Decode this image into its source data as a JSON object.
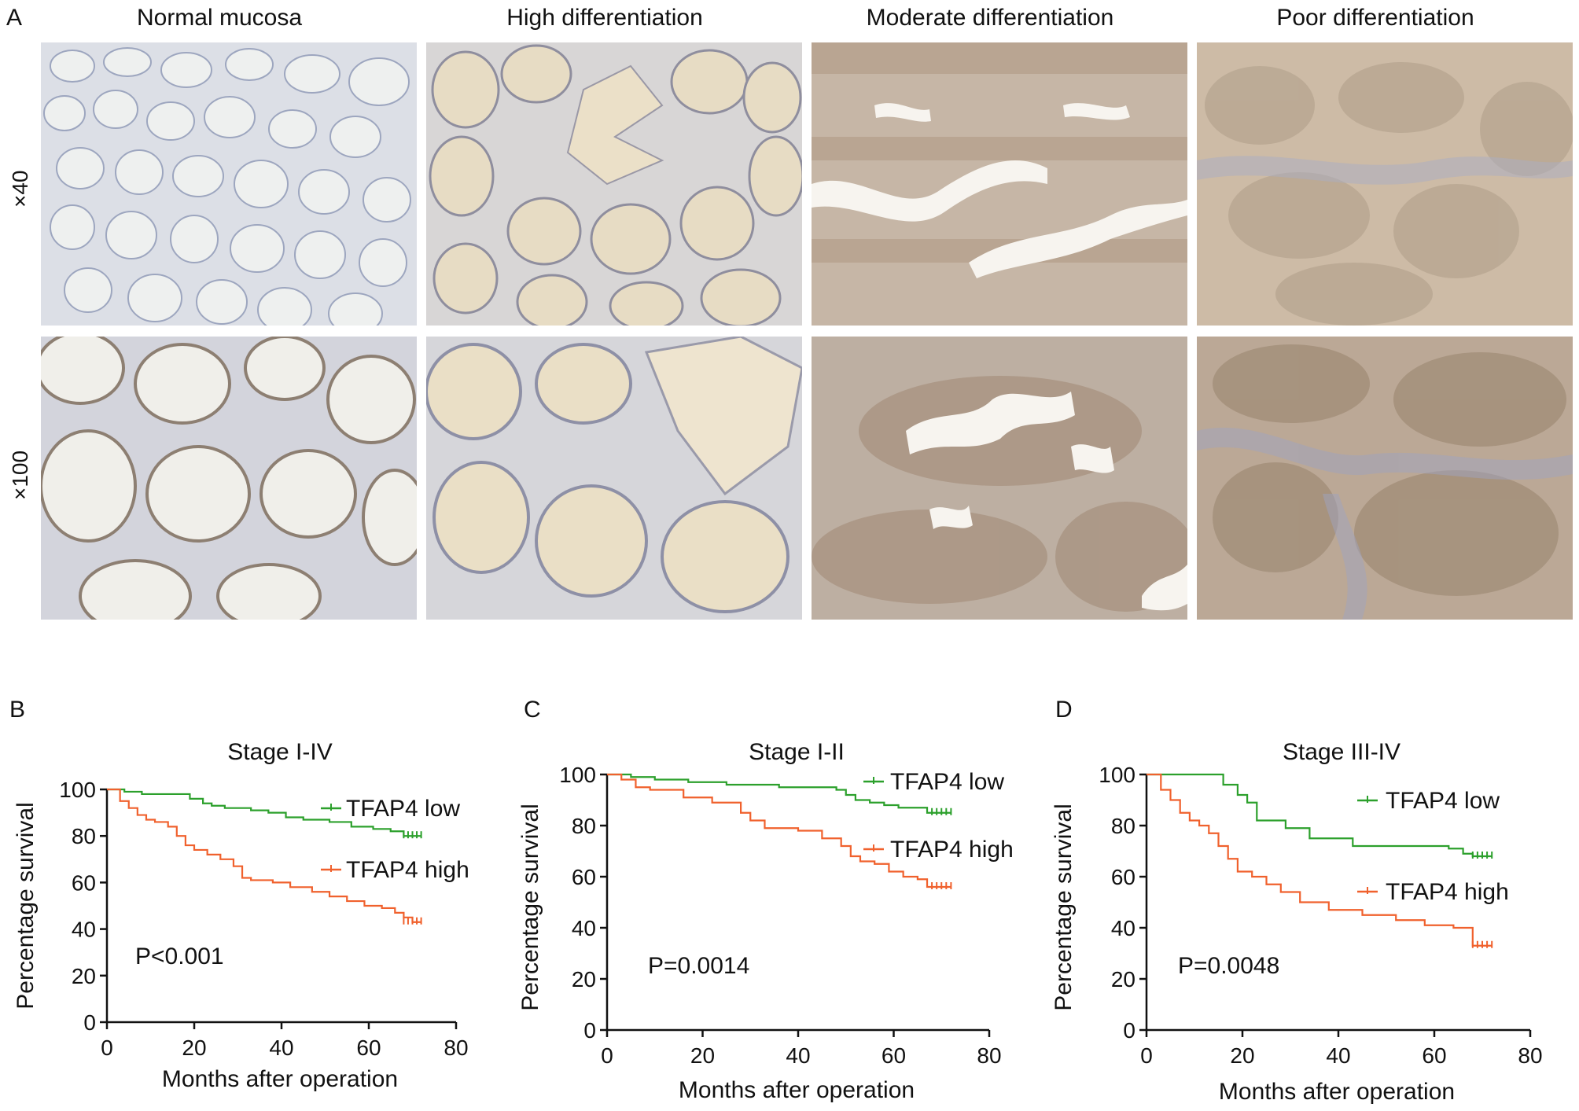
{
  "panel_a": {
    "letter": "A",
    "columns": [
      "Normal mucosa",
      "High differentiation",
      "Moderate differentiation",
      "Poor differentiation"
    ],
    "rows": [
      "×40",
      "×100"
    ]
  },
  "colors": {
    "low": "#2ca02c",
    "high": "#f0612d",
    "axis": "#111111"
  },
  "chart_data": [
    {
      "panel": "B",
      "type": "line",
      "title": "Stage I-IV",
      "xlabel": "Months after operation",
      "ylabel": "Percentage survival",
      "xlim": [
        0,
        80
      ],
      "ylim": [
        0,
        100
      ],
      "xticks": [
        0,
        20,
        40,
        60,
        80
      ],
      "yticks": [
        0,
        20,
        40,
        60,
        80,
        100
      ],
      "pvalue": "P<0.001",
      "series": [
        {
          "name": "TFAP4 low",
          "color": "#2ca02c",
          "x": [
            0,
            4,
            8,
            15,
            19,
            22,
            24,
            27,
            33,
            37,
            41,
            45,
            51,
            56,
            61,
            65,
            68,
            72
          ],
          "y": [
            100,
            99,
            98,
            98,
            96,
            94,
            93,
            92,
            91,
            90,
            88,
            87,
            86,
            84,
            83,
            82,
            80,
            80
          ]
        },
        {
          "name": "TFAP4 high",
          "color": "#f0612d",
          "x": [
            0,
            3,
            5,
            7,
            9,
            11,
            14,
            16,
            18,
            20,
            23,
            26,
            29,
            31,
            33,
            38,
            42,
            47,
            51,
            55,
            59,
            63,
            66,
            68,
            70,
            72
          ],
          "y": [
            100,
            95,
            92,
            89,
            87,
            86,
            84,
            80,
            76,
            74,
            72,
            70,
            67,
            62,
            61,
            60,
            58,
            56,
            54,
            52,
            50,
            49,
            47,
            45,
            43,
            43
          ]
        }
      ]
    },
    {
      "panel": "C",
      "type": "line",
      "title": "Stage I-II",
      "xlabel": "Months after operation",
      "ylabel": "Percentage survival",
      "xlim": [
        0,
        80
      ],
      "ylim": [
        0,
        100
      ],
      "xticks": [
        0,
        20,
        40,
        60,
        80
      ],
      "yticks": [
        0,
        20,
        40,
        60,
        80,
        100
      ],
      "pvalue": "P=0.0014",
      "series": [
        {
          "name": "TFAP4 low",
          "color": "#2ca02c",
          "x": [
            0,
            5,
            10,
            17,
            25,
            36,
            44,
            48,
            50,
            52,
            55,
            58,
            61,
            64,
            67,
            72
          ],
          "y": [
            100,
            99,
            98,
            97,
            96,
            95,
            95,
            94,
            92,
            90,
            89,
            88,
            87,
            87,
            85,
            85
          ]
        },
        {
          "name": "TFAP4 high",
          "color": "#f0612d",
          "x": [
            0,
            3,
            6,
            9,
            16,
            22,
            28,
            30,
            33,
            40,
            45,
            49,
            51,
            53,
            56,
            59,
            62,
            65,
            67,
            72
          ],
          "y": [
            100,
            98,
            95,
            94,
            91,
            89,
            85,
            82,
            79,
            78,
            75,
            72,
            68,
            66,
            65,
            62,
            60,
            59,
            56,
            56
          ]
        }
      ]
    },
    {
      "panel": "D",
      "type": "line",
      "title": "Stage III-IV",
      "xlabel": "Months after operation",
      "ylabel": "Percentage survival",
      "xlim": [
        0,
        80
      ],
      "ylim": [
        0,
        100
      ],
      "xticks": [
        0,
        20,
        40,
        60,
        80
      ],
      "yticks": [
        0,
        20,
        40,
        60,
        80,
        100
      ],
      "pvalue": "P=0.0048",
      "series": [
        {
          "name": "TFAP4 low",
          "color": "#2ca02c",
          "x": [
            0,
            14,
            16,
            19,
            21,
            23,
            29,
            34,
            43,
            54,
            63,
            66,
            68,
            72
          ],
          "y": [
            100,
            100,
            96,
            92,
            89,
            82,
            79,
            75,
            72,
            72,
            71,
            69,
            68,
            68
          ]
        },
        {
          "name": "TFAP4 high",
          "color": "#f0612d",
          "x": [
            0,
            3,
            5,
            7,
            9,
            11,
            13,
            15,
            17,
            19,
            22,
            25,
            28,
            32,
            38,
            45,
            52,
            58,
            64,
            68,
            72
          ],
          "y": [
            100,
            94,
            90,
            85,
            82,
            80,
            77,
            72,
            67,
            62,
            60,
            57,
            54,
            50,
            47,
            45,
            43,
            41,
            40,
            33,
            33
          ]
        }
      ]
    }
  ]
}
